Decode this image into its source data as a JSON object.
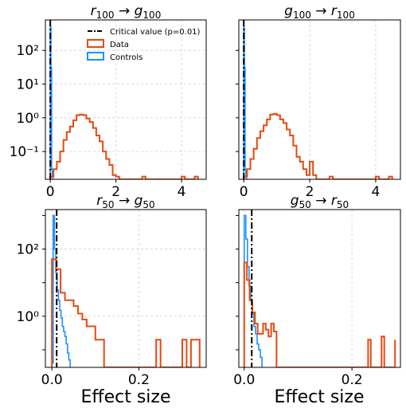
{
  "figure": {
    "xlabel": "Effect size"
  },
  "colors": {
    "data": "#e8490f",
    "controls": "#1f8fff",
    "critical": "#000000",
    "grid": "#d0d0d0"
  },
  "legend": {
    "placement": "top-right",
    "entries": [
      {
        "label": "Critical value (p=0.01)",
        "kind": "critical"
      },
      {
        "label": "Data",
        "kind": "data"
      },
      {
        "label": "Controls",
        "kind": "controls"
      }
    ]
  },
  "chart_data": [
    {
      "id": "r100_g100",
      "type": "histogram",
      "title": {
        "a": "r",
        "as": "100",
        "b": "g",
        "bs": "100"
      },
      "xlim": [
        -0.15,
        4.75
      ],
      "ylim": [
        0.015,
        800
      ],
      "yscale": "log",
      "grid": true,
      "xticks": [
        0,
        2,
        4
      ],
      "xtick_labels": [
        "0",
        "2",
        "4"
      ],
      "yticks": [
        0.1,
        1,
        10,
        100
      ],
      "ytick_labels": [
        "10⁻¹",
        "10⁰",
        "10¹",
        "10²"
      ],
      "critical_value": 0.0,
      "series": [
        {
          "name": "Data",
          "bin_width": 0.1,
          "edges": [
            0.0,
            0.1,
            0.2,
            0.3,
            0.4,
            0.5,
            0.6,
            0.7,
            0.8,
            0.9,
            1.0,
            1.1,
            1.2,
            1.3,
            1.4,
            1.5,
            1.6,
            1.7,
            1.8,
            1.9,
            2.0,
            2.1,
            2.2,
            2.3,
            2.4,
            2.5,
            2.6,
            2.7,
            2.8,
            2.9,
            3.0,
            3.1,
            3.2,
            3.3,
            3.4,
            3.5,
            3.6,
            3.7,
            3.8,
            3.9,
            4.0,
            4.1,
            4.2,
            4.3,
            4.4,
            4.5
          ],
          "values": [
            0.018,
            0.03,
            0.05,
            0.1,
            0.22,
            0.38,
            0.55,
            0.85,
            1.2,
            1.25,
            1.2,
            0.95,
            0.75,
            0.5,
            0.3,
            0.2,
            0.1,
            0.06,
            0.04,
            0.02,
            0.018,
            0.0,
            0.0,
            0.0,
            0.0,
            0.0,
            0.0,
            0.0,
            0.018,
            0.0,
            0.0,
            0.0,
            0.0,
            0.0,
            0.0,
            0.0,
            0.0,
            0.0,
            0.0,
            0.0,
            0.018,
            0.0,
            0.0,
            0.0,
            0.018
          ]
        },
        {
          "name": "Controls",
          "bin_width": 0.02,
          "edges": [
            0.0,
            0.02,
            0.04,
            0.06,
            0.08,
            0.1,
            0.12
          ],
          "values": [
            500,
            30,
            0.03,
            0.018,
            0.0,
            0.0
          ]
        }
      ]
    },
    {
      "id": "g100_r100",
      "type": "histogram",
      "title": {
        "a": "g",
        "as": "100",
        "b": "r",
        "bs": "100"
      },
      "xlim": [
        -0.15,
        4.75
      ],
      "ylim": [
        0.015,
        800
      ],
      "yscale": "log",
      "grid": true,
      "xticks": [
        0,
        2,
        4
      ],
      "xtick_labels": [
        "0",
        "2",
        "4"
      ],
      "yticks": [],
      "ytick_labels": [],
      "critical_value": 0.0,
      "series": [
        {
          "name": "Data",
          "bin_width": 0.1,
          "edges": [
            0.0,
            0.1,
            0.2,
            0.3,
            0.4,
            0.5,
            0.6,
            0.7,
            0.8,
            0.9,
            1.0,
            1.1,
            1.2,
            1.3,
            1.4,
            1.5,
            1.6,
            1.7,
            1.8,
            1.9,
            2.0,
            2.1,
            2.2,
            2.3,
            2.4,
            2.5,
            2.6,
            2.7,
            2.8,
            2.9,
            3.0,
            3.1,
            3.2,
            3.3,
            3.4,
            3.5,
            3.6,
            3.7,
            3.8,
            3.9,
            4.0,
            4.1,
            4.2,
            4.3,
            4.4,
            4.5
          ],
          "values": [
            0.018,
            0.03,
            0.06,
            0.12,
            0.25,
            0.4,
            0.6,
            0.9,
            1.25,
            1.3,
            1.2,
            0.9,
            0.7,
            0.45,
            0.3,
            0.15,
            0.07,
            0.05,
            0.03,
            0.02,
            0.05,
            0.02,
            0.0,
            0.0,
            0.0,
            0.0,
            0.018,
            0.0,
            0.0,
            0.0,
            0.0,
            0.0,
            0.0,
            0.0,
            0.0,
            0.0,
            0.0,
            0.0,
            0.0,
            0.0,
            0.018,
            0.0,
            0.0,
            0.0,
            0.018
          ]
        },
        {
          "name": "Controls",
          "bin_width": 0.02,
          "edges": [
            0.0,
            0.02,
            0.04,
            0.06,
            0.08,
            0.1,
            0.12
          ],
          "values": [
            500,
            30,
            0.03,
            0.018,
            0.0,
            0.0
          ]
        }
      ]
    },
    {
      "id": "r50_g50",
      "type": "histogram",
      "title": {
        "a": "r",
        "as": "50",
        "b": "g",
        "bs": "50"
      },
      "xlim": [
        -0.015,
        0.355
      ],
      "ylim": [
        0.03,
        1500
      ],
      "yscale": "log",
      "grid": true,
      "xticks": [
        0.0,
        0.2
      ],
      "xtick_labels": [
        "0.0",
        "0.2"
      ],
      "yticks": [
        1,
        100
      ],
      "ytick_labels": [
        "10⁰",
        "10²"
      ],
      "critical_value": 0.011,
      "series": [
        {
          "name": "Data",
          "bin_width": 0.01,
          "edges": [
            0.0,
            0.01,
            0.02,
            0.03,
            0.04,
            0.05,
            0.06,
            0.07,
            0.08,
            0.09,
            0.1,
            0.11,
            0.12,
            0.13,
            0.14,
            0.15,
            0.16,
            0.17,
            0.18,
            0.19,
            0.2,
            0.21,
            0.22,
            0.23,
            0.24,
            0.25,
            0.26,
            0.27,
            0.28,
            0.29,
            0.3,
            0.31,
            0.32,
            0.33,
            0.34
          ],
          "values": [
            50,
            25,
            5,
            3,
            3,
            2,
            1.2,
            0.8,
            0.5,
            0.5,
            0.2,
            0.2,
            0.0,
            0.0,
            0.0,
            0.0,
            0.0,
            0.0,
            0.0,
            0.0,
            0.0,
            0.0,
            0.0,
            0.0,
            0.2,
            0.0,
            0.0,
            0.0,
            0.0,
            0.0,
            0.2,
            0.0,
            0.2,
            0.2
          ]
        },
        {
          "name": "Controls",
          "bin_width": 0.003,
          "edges": [
            0.0,
            0.003,
            0.006,
            0.009,
            0.012,
            0.015,
            0.018,
            0.021,
            0.024,
            0.027,
            0.03,
            0.033,
            0.036,
            0.039,
            0.042
          ],
          "values": [
            0.04,
            1000,
            100,
            20,
            6,
            3,
            1.5,
            0.9,
            0.5,
            0.35,
            0.25,
            0.15,
            0.08,
            0.05
          ]
        }
      ]
    },
    {
      "id": "g50_r50",
      "type": "histogram",
      "title": {
        "a": "g",
        "as": "50",
        "b": "r",
        "bs": "50"
      },
      "xlim": [
        -0.01,
        0.29
      ],
      "ylim": [
        0.03,
        1500
      ],
      "yscale": "log",
      "grid": true,
      "xticks": [
        0.0,
        0.2
      ],
      "xtick_labels": [
        "0.0",
        "0.2"
      ],
      "yticks": [],
      "ytick_labels": [],
      "critical_value": 0.014,
      "series": [
        {
          "name": "Data",
          "bin_width": 0.005,
          "edges": [
            0.0,
            0.005,
            0.01,
            0.015,
            0.02,
            0.025,
            0.03,
            0.035,
            0.04,
            0.045,
            0.05,
            0.055,
            0.06,
            0.065,
            0.07,
            0.075,
            0.08,
            0.085,
            0.09,
            0.095,
            0.1,
            0.105,
            0.11,
            0.115,
            0.12,
            0.125,
            0.13,
            0.135,
            0.14,
            0.145,
            0.15,
            0.155,
            0.16,
            0.165,
            0.17,
            0.175,
            0.18,
            0.185,
            0.19,
            0.195,
            0.2,
            0.205,
            0.21,
            0.215,
            0.22,
            0.225,
            0.23,
            0.235,
            0.24,
            0.245,
            0.25,
            0.255,
            0.26,
            0.265,
            0.27,
            0.275,
            0.28
          ],
          "values": [
            40,
            12,
            3,
            1.3,
            0.6,
            0.3,
            0.3,
            0.6,
            0.4,
            0.25,
            0.6,
            0.35,
            0.0,
            0.0,
            0.0,
            0.0,
            0.0,
            0.0,
            0.0,
            0.0,
            0.0,
            0.0,
            0.0,
            0.0,
            0.0,
            0.0,
            0.0,
            0.0,
            0.0,
            0.0,
            0.0,
            0.0,
            0.0,
            0.0,
            0.0,
            0.0,
            0.0,
            0.0,
            0.0,
            0.0,
            0.0,
            0.0,
            0.0,
            0.0,
            0.0,
            0.0,
            0.2,
            0.0,
            0.0,
            0.0,
            0.0,
            0.25,
            0.0,
            0.0,
            0.0,
            0.0,
            0.2
          ]
        },
        {
          "name": "Controls",
          "bin_width": 0.003,
          "edges": [
            0.0,
            0.003,
            0.006,
            0.009,
            0.012,
            0.015,
            0.018,
            0.021,
            0.024,
            0.027,
            0.03,
            0.033
          ],
          "values": [
            1000,
            200,
            30,
            8,
            3,
            1.2,
            0.5,
            0.3,
            0.15,
            0.1,
            0.06
          ]
        }
      ]
    }
  ]
}
